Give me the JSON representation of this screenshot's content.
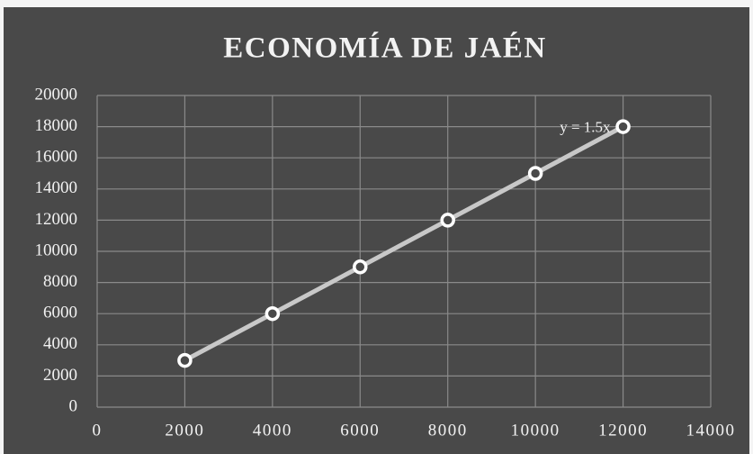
{
  "chart_data": {
    "type": "line",
    "title": "ECONOMÍA DE JAÉN",
    "x": [
      2000,
      4000,
      6000,
      8000,
      10000,
      12000
    ],
    "values": [
      3000,
      6000,
      9000,
      12000,
      15000,
      18000
    ],
    "color": "#c8c8c8",
    "annotation": "y = 1.5x",
    "xlim": [
      0,
      14000
    ],
    "xticks": [
      0,
      2000,
      4000,
      6000,
      8000,
      10000,
      12000,
      14000
    ],
    "ylim": [
      0,
      20000
    ],
    "yticks": [
      0,
      2000,
      4000,
      6000,
      8000,
      10000,
      12000,
      14000,
      16000,
      18000,
      20000
    ],
    "grid": true
  }
}
